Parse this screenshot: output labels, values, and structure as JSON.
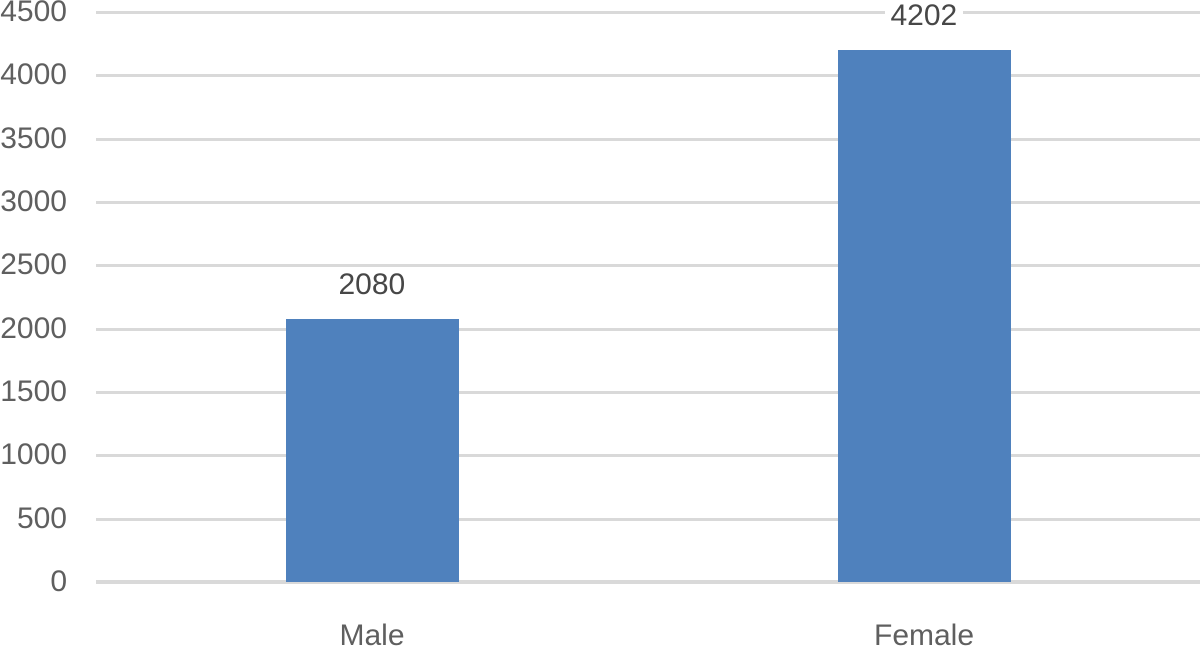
{
  "chart_data": {
    "type": "bar",
    "title": "",
    "xlabel": "",
    "ylabel": "",
    "categories": [
      "Male",
      "Female"
    ],
    "values": [
      2080,
      4202
    ],
    "data_labels": [
      "2080",
      "4202"
    ],
    "ylim": [
      0,
      4500
    ],
    "ytick_step": 500,
    "yticks": [
      "0",
      "500",
      "1000",
      "1500",
      "2000",
      "2500",
      "3000",
      "3500",
      "4000",
      "4500"
    ],
    "grid": true,
    "legend_position": "none",
    "colors": {
      "bar": "#4F81BD",
      "gridline": "#D9D9D9",
      "axis_line": "#D9D9D9",
      "tick_label": "#5F5F5F",
      "category_label": "#5F5F5F",
      "data_label": "#474747",
      "background": "#FFFFFF"
    }
  }
}
